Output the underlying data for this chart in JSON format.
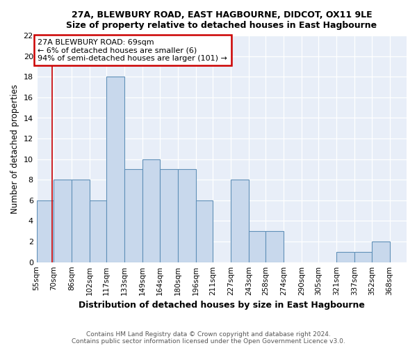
{
  "title": "27A, BLEWBURY ROAD, EAST HAGBOURNE, DIDCOT, OX11 9LE",
  "subtitle": "Size of property relative to detached houses in East Hagbourne",
  "xlabel": "Distribution of detached houses by size in East Hagbourne",
  "ylabel": "Number of detached properties",
  "bin_labels": [
    "55sqm",
    "70sqm",
    "86sqm",
    "102sqm",
    "117sqm",
    "133sqm",
    "149sqm",
    "164sqm",
    "180sqm",
    "196sqm",
    "211sqm",
    "227sqm",
    "243sqm",
    "258sqm",
    "274sqm",
    "290sqm",
    "305sqm",
    "321sqm",
    "337sqm",
    "352sqm",
    "368sqm"
  ],
  "bar_heights": [
    6,
    8,
    8,
    6,
    18,
    9,
    10,
    9,
    9,
    6,
    0,
    8,
    3,
    3,
    0,
    0,
    0,
    1,
    1,
    2,
    0
  ],
  "bar_color": "#c8d8ec",
  "bar_edge_color": "#6090b8",
  "annotation_text": "27A BLEWBURY ROAD: 69sqm\n← 6% of detached houses are smaller (6)\n94% of semi-detached houses are larger (101) →",
  "annotation_box_color": "#cc0000",
  "vline_x": 69,
  "vline_color": "#cc0000",
  "ylim": [
    0,
    22
  ],
  "yticks": [
    0,
    2,
    4,
    6,
    8,
    10,
    12,
    14,
    16,
    18,
    20,
    22
  ],
  "footnote1": "Contains HM Land Registry data © Crown copyright and database right 2024.",
  "footnote2": "Contains public sector information licensed under the Open Government Licence v3.0.",
  "fig_bg_color": "#ffffff",
  "plot_bg_color": "#e8eef8",
  "bin_edges": [
    55,
    70,
    86,
    102,
    117,
    133,
    149,
    164,
    180,
    196,
    211,
    227,
    243,
    258,
    274,
    290,
    305,
    321,
    337,
    352,
    368,
    383
  ]
}
